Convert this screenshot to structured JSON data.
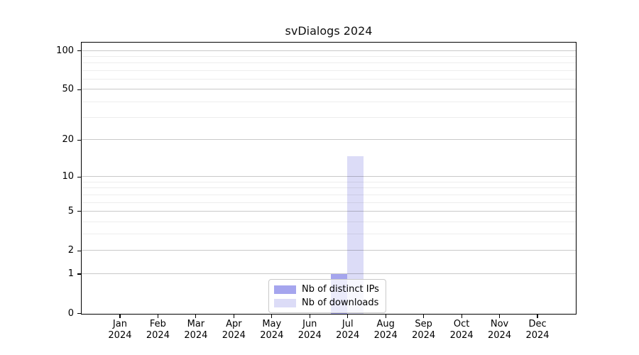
{
  "chart_data": {
    "type": "bar",
    "title": "svDialogs 2024",
    "categories": [
      "Jan",
      "Feb",
      "Mar",
      "Apr",
      "May",
      "Jun",
      "Jul",
      "Aug",
      "Sep",
      "Oct",
      "Nov",
      "Dec"
    ],
    "category_year": "2024",
    "series": [
      {
        "name": "Nb of distinct IPs",
        "color": "#a5a5ee",
        "values": [
          0,
          0,
          0,
          0,
          0,
          0,
          1,
          0,
          0,
          0,
          0,
          0
        ]
      },
      {
        "name": "Nb of downloads",
        "color": "#dcdcf7",
        "values": [
          0,
          0,
          0,
          0,
          0,
          0,
          15,
          0,
          0,
          0,
          0,
          0
        ]
      }
    ],
    "xlabel": "",
    "ylabel": "",
    "yscale": "log1p",
    "ylim": [
      0,
      115
    ],
    "yticks": [
      0,
      1,
      2,
      5,
      10,
      20,
      50,
      100
    ],
    "minor_gridlines": [
      3,
      4,
      6,
      7,
      8,
      9,
      30,
      40,
      60,
      70,
      80,
      90
    ],
    "grid": "horizontal",
    "legend_position": "bottom-center"
  },
  "colors": {
    "background": "#ffffff",
    "axis": "#000000",
    "series_ips": "#a5a5ee",
    "series_downloads": "#dcdcf7"
  }
}
